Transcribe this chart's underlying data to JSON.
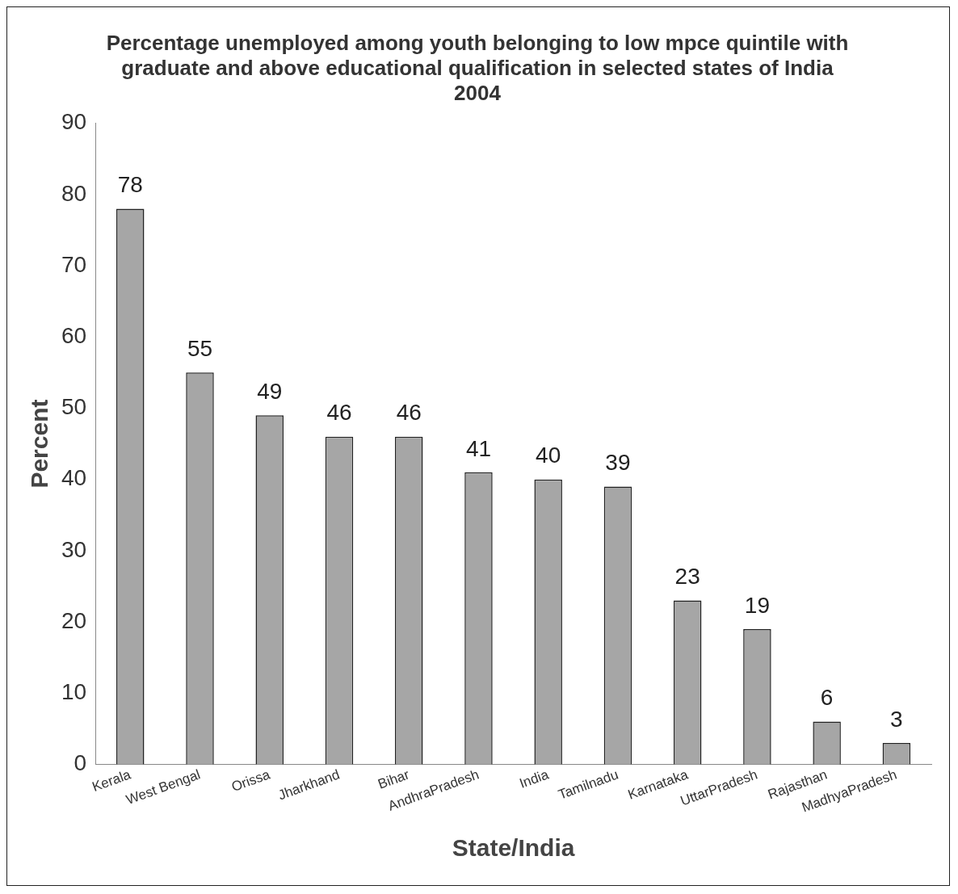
{
  "chart_data": {
    "type": "bar",
    "title": "Percentage unemployed among youth belonging to low mpce quintile with graduate and above educational qualification in selected states of India 2004",
    "xlabel": "State/India",
    "ylabel": "Percent",
    "categories": [
      "Kerala",
      "West Bengal",
      "Orissa",
      "Jharkhand",
      "Bihar",
      "AndhraPradesh",
      "India",
      "Tamilnadu",
      "Karnataka",
      "UttarPradesh",
      "Rajasthan",
      "MadhyaPradesh"
    ],
    "values": [
      78,
      55,
      49,
      46,
      46,
      41,
      40,
      39,
      23,
      19,
      6,
      3
    ],
    "color": "#a6a6a6",
    "ylim": [
      0,
      90
    ],
    "yticks": [
      0,
      10,
      20,
      30,
      40,
      50,
      60,
      70,
      80,
      90
    ],
    "grid": false,
    "legend": false,
    "data_labels": true
  }
}
